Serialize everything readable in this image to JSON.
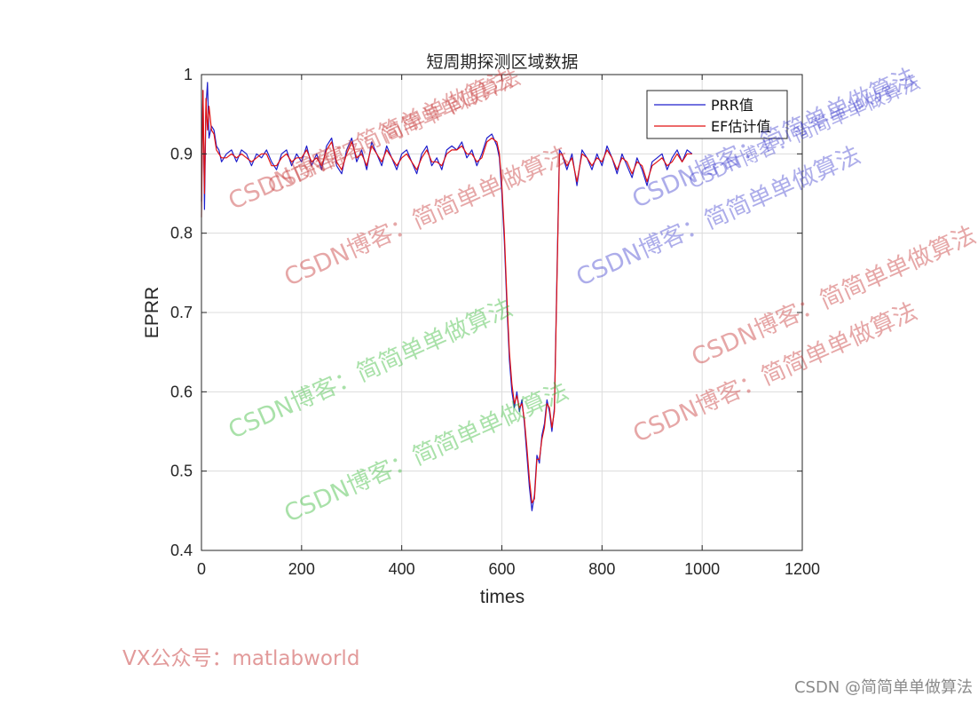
{
  "chart_data": {
    "type": "line",
    "title": "短周期探测区域数据",
    "xlabel": "times",
    "ylabel": "EPRR",
    "xlim": [
      0,
      1200
    ],
    "ylim": [
      0.4,
      1.0
    ],
    "xticks": [
      0,
      200,
      400,
      600,
      800,
      1000,
      1200
    ],
    "yticks": [
      0.4,
      0.5,
      0.6,
      0.7,
      0.8,
      0.9,
      1.0
    ],
    "ytick_labels": [
      "0.4",
      "0.5",
      "0.6",
      "0.7",
      "0.8",
      "0.9",
      "1"
    ],
    "grid": true,
    "legend_position": "top-right",
    "series": [
      {
        "name": "PRR值",
        "color": "#1f1fcc",
        "x": [
          0,
          3,
          6,
          9,
          12,
          15,
          20,
          25,
          30,
          35,
          40,
          50,
          60,
          70,
          80,
          90,
          100,
          110,
          120,
          130,
          140,
          150,
          160,
          170,
          180,
          190,
          200,
          210,
          220,
          230,
          240,
          250,
          260,
          270,
          280,
          290,
          300,
          310,
          320,
          330,
          340,
          350,
          360,
          370,
          380,
          390,
          400,
          410,
          420,
          430,
          440,
          450,
          460,
          470,
          480,
          490,
          500,
          510,
          520,
          530,
          540,
          550,
          560,
          570,
          580,
          590,
          595,
          600,
          605,
          610,
          615,
          620,
          625,
          630,
          635,
          640,
          645,
          650,
          655,
          660,
          665,
          670,
          675,
          680,
          685,
          690,
          695,
          700,
          705,
          710,
          715,
          720,
          730,
          740,
          750,
          760,
          770,
          780,
          790,
          800,
          810,
          820,
          830,
          840,
          850,
          860,
          870,
          880,
          890,
          900,
          910,
          920,
          930,
          940,
          950,
          960,
          970,
          980
        ],
        "y": [
          0.84,
          0.98,
          0.83,
          0.96,
          0.99,
          0.92,
          0.935,
          0.93,
          0.91,
          0.905,
          0.89,
          0.9,
          0.905,
          0.89,
          0.905,
          0.9,
          0.885,
          0.9,
          0.895,
          0.905,
          0.89,
          0.88,
          0.9,
          0.905,
          0.885,
          0.9,
          0.89,
          0.91,
          0.885,
          0.9,
          0.88,
          0.91,
          0.92,
          0.885,
          0.875,
          0.905,
          0.92,
          0.89,
          0.905,
          0.88,
          0.915,
          0.9,
          0.885,
          0.91,
          0.895,
          0.88,
          0.9,
          0.905,
          0.89,
          0.875,
          0.9,
          0.91,
          0.885,
          0.895,
          0.88,
          0.905,
          0.91,
          0.905,
          0.915,
          0.895,
          0.905,
          0.885,
          0.9,
          0.92,
          0.925,
          0.91,
          0.895,
          0.85,
          0.79,
          0.71,
          0.64,
          0.6,
          0.58,
          0.6,
          0.575,
          0.59,
          0.56,
          0.52,
          0.48,
          0.45,
          0.47,
          0.52,
          0.51,
          0.545,
          0.56,
          0.59,
          0.575,
          0.55,
          0.58,
          0.75,
          0.905,
          0.9,
          0.88,
          0.9,
          0.86,
          0.905,
          0.895,
          0.88,
          0.9,
          0.885,
          0.91,
          0.895,
          0.875,
          0.9,
          0.885,
          0.87,
          0.895,
          0.88,
          0.86,
          0.89,
          0.895,
          0.9,
          0.88,
          0.895,
          0.905,
          0.89,
          0.905,
          0.9
        ]
      },
      {
        "name": "EF估计值",
        "color": "#e01010",
        "x": [
          0,
          3,
          6,
          9,
          12,
          15,
          20,
          25,
          30,
          35,
          40,
          50,
          60,
          70,
          80,
          90,
          100,
          110,
          120,
          130,
          140,
          150,
          160,
          170,
          180,
          190,
          200,
          210,
          220,
          230,
          240,
          250,
          260,
          270,
          280,
          290,
          300,
          310,
          320,
          330,
          340,
          350,
          360,
          370,
          380,
          390,
          400,
          410,
          420,
          430,
          440,
          450,
          460,
          470,
          480,
          490,
          500,
          510,
          520,
          530,
          540,
          550,
          560,
          570,
          580,
          590,
          595,
          600,
          605,
          610,
          615,
          620,
          625,
          630,
          635,
          640,
          645,
          650,
          655,
          660,
          665,
          670,
          675,
          680,
          685,
          690,
          695,
          700,
          705,
          710,
          715,
          720,
          730,
          740,
          750,
          760,
          770,
          780,
          790,
          800,
          810,
          820,
          830,
          840,
          850,
          860,
          870,
          880,
          890,
          900,
          910,
          920,
          930,
          940,
          950,
          960,
          970,
          980
        ],
        "y": [
          0.82,
          0.98,
          0.85,
          0.97,
          0.93,
          0.96,
          0.93,
          0.925,
          0.905,
          0.9,
          0.895,
          0.895,
          0.9,
          0.895,
          0.9,
          0.895,
          0.89,
          0.895,
          0.9,
          0.9,
          0.885,
          0.885,
          0.895,
          0.9,
          0.89,
          0.895,
          0.895,
          0.905,
          0.89,
          0.895,
          0.885,
          0.905,
          0.915,
          0.89,
          0.88,
          0.9,
          0.915,
          0.895,
          0.9,
          0.885,
          0.91,
          0.9,
          0.89,
          0.905,
          0.895,
          0.885,
          0.895,
          0.9,
          0.89,
          0.88,
          0.895,
          0.905,
          0.89,
          0.89,
          0.885,
          0.9,
          0.905,
          0.905,
          0.91,
          0.9,
          0.9,
          0.89,
          0.895,
          0.915,
          0.92,
          0.915,
          0.9,
          0.86,
          0.8,
          0.72,
          0.65,
          0.61,
          0.585,
          0.595,
          0.58,
          0.585,
          0.565,
          0.53,
          0.49,
          0.46,
          0.465,
          0.515,
          0.515,
          0.54,
          0.555,
          0.585,
          0.58,
          0.555,
          0.575,
          0.74,
          0.9,
          0.9,
          0.885,
          0.895,
          0.865,
          0.9,
          0.895,
          0.885,
          0.895,
          0.89,
          0.905,
          0.895,
          0.88,
          0.895,
          0.89,
          0.875,
          0.89,
          0.885,
          0.865,
          0.885,
          0.89,
          0.895,
          0.885,
          0.89,
          0.9,
          0.89,
          0.9,
          0.9
        ]
      }
    ]
  },
  "watermarks": [
    "CSDN博客：简简单单做算法",
    "CSDN博客：简简单单做算法",
    "CSDN博客：简简单单做算法",
    "CSDN博客：简简单单做算法",
    "CSDN博客：简简单单做算法",
    "CSDN博客：简简单单做算法",
    "CSDN博客：简简单单做算法",
    "CSDN博客：简简单单做算法",
    "CSDN博客：简简单单做算法",
    "CSDN博客：简简单单做算法"
  ],
  "footer": {
    "left": "VX公众号：matlabworld",
    "right": "CSDN @简简单单做算法"
  }
}
